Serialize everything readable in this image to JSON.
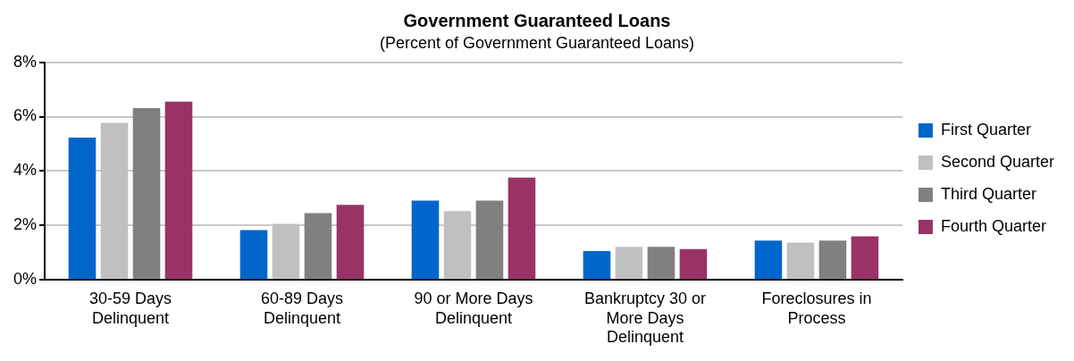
{
  "chart_data": {
    "type": "bar",
    "title": "Government Guaranteed Loans",
    "subtitle": "(Percent of Government Guaranteed Loans)",
    "categories": [
      "30-59 Days Delinquent",
      "60-89 Days Delinquent",
      "90 or More Days Delinquent",
      "Bankruptcy 30 or More Days Delinquent",
      "Foreclosures in Process"
    ],
    "series": [
      {
        "name": "First Quarter",
        "color": "#0066cc",
        "values": [
          5.23,
          1.83,
          2.91,
          1.06,
          1.44
        ]
      },
      {
        "name": "Second Quarter",
        "color": "#c0c0c0",
        "values": [
          5.77,
          2.06,
          2.53,
          1.21,
          1.37
        ]
      },
      {
        "name": "Third Quarter",
        "color": "#808080",
        "values": [
          6.31,
          2.45,
          2.91,
          1.21,
          1.44
        ]
      },
      {
        "name": "Fourth Quarter",
        "color": "#993366",
        "values": [
          6.55,
          2.76,
          3.76,
          1.13,
          1.6
        ]
      }
    ],
    "ylim": [
      0,
      8
    ],
    "yticks": [
      {
        "value": 0,
        "label": "0%"
      },
      {
        "value": 2,
        "label": "2%"
      },
      {
        "value": 4,
        "label": "4%"
      },
      {
        "value": 6,
        "label": "6%"
      },
      {
        "value": 8,
        "label": "8%"
      }
    ],
    "grid": "y",
    "legend": "right"
  }
}
